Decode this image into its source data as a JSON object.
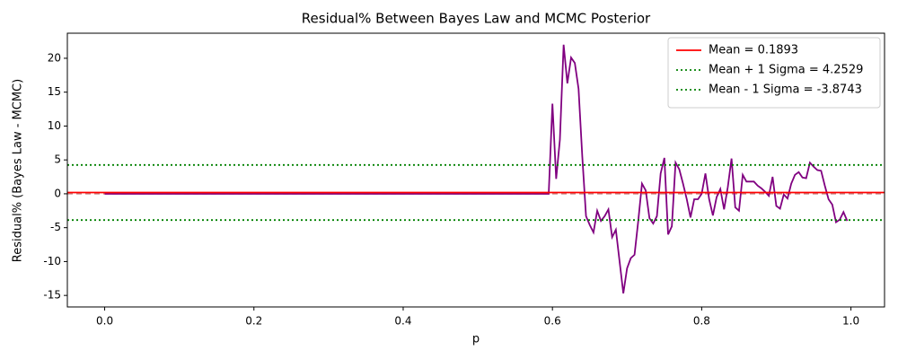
{
  "chart_data": {
    "type": "line",
    "title": "Residual% Between Bayes Law and MCMC Posterior",
    "x_label": "p",
    "y_label": "Residual% (Bayes Law - MCMC)",
    "color": "#800080",
    "x": [
      0,
      0.595,
      0.6,
      0.605,
      0.61,
      0.615,
      0.62,
      0.625,
      0.63,
      0.635,
      0.64,
      0.645,
      0.65,
      0.655,
      0.66,
      0.665,
      0.67,
      0.675,
      0.68,
      0.685,
      0.69,
      0.695,
      0.7,
      0.705,
      0.71,
      0.715,
      0.72,
      0.725,
      0.73,
      0.735,
      0.74,
      0.745,
      0.75,
      0.755,
      0.76,
      0.765,
      0.77,
      0.775,
      0.78,
      0.785,
      0.79,
      0.795,
      0.8,
      0.805,
      0.81,
      0.815,
      0.82,
      0.825,
      0.83,
      0.835,
      0.84,
      0.845,
      0.85,
      0.855,
      0.86,
      0.865,
      0.87,
      0.875,
      0.88,
      0.885,
      0.89,
      0.895,
      0.9,
      0.905,
      0.91,
      0.915,
      0.92,
      0.925,
      0.93,
      0.935,
      0.94,
      0.945,
      0.95,
      0.955,
      0.96,
      0.965,
      0.97,
      0.975,
      0.98,
      0.985,
      0.99,
      0.995
    ],
    "values": [
      0,
      0,
      13.3,
      2.2,
      8,
      22,
      16.3,
      20.1,
      19.3,
      15.5,
      5.5,
      -3.3,
      -4.6,
      -5.7,
      -2.5,
      -4,
      -3.3,
      -2.3,
      -6.4,
      -5.3,
      -10,
      -14.7,
      -11,
      -9.5,
      -9,
      -4,
      1.5,
      0.5,
      -3.6,
      -4.4,
      -3.3,
      3,
      5.3,
      -6,
      -4.8,
      4.6,
      3.6,
      1.5,
      -0.8,
      -3.5,
      -0.8,
      -0.8,
      0,
      3,
      -0.8,
      -3.2,
      -0.5,
      0.7,
      -2.3,
      1,
      5.2,
      -2,
      -2.5,
      2.8,
      1.8,
      1.8,
      1.8,
      1.2,
      0.8,
      0.3,
      -0.3,
      2.5,
      -1.8,
      -2.2,
      -0.1,
      -0.7,
      1.5,
      2.8,
      3.2,
      2.4,
      2.3,
      4.6,
      4,
      3.5,
      3.4,
      1.2,
      -0.8,
      -1.6,
      -4.2,
      -3.8,
      -2.7,
      -4
    ],
    "hlines": [
      {
        "name": "Mean = 0.1893",
        "value": 0.1893,
        "color": "#ff0000",
        "style": "solid"
      },
      {
        "name": "Mean + 1 Sigma = 4.2529",
        "value": 4.2529,
        "color": "#008000",
        "style": "dotted"
      },
      {
        "name": "Mean - 1 Sigma = -3.8743",
        "value": -3.8743,
        "color": "#008000",
        "style": "dotted"
      }
    ],
    "reference_line": {
      "value": 0,
      "color": "#c08080",
      "style": "dashed"
    },
    "xlim": [
      -0.05,
      1.045
    ],
    "ylim": [
      -16.7,
      23.7
    ],
    "xticks": [
      {
        "value": 0,
        "label": "0.0"
      },
      0.2,
      0.4,
      0.6,
      0.8,
      {
        "value": 1,
        "label": "1.0"
      }
    ],
    "yticks": [
      -15,
      -10,
      -5,
      0,
      5,
      10,
      15,
      20
    ],
    "legend": "upper right"
  }
}
